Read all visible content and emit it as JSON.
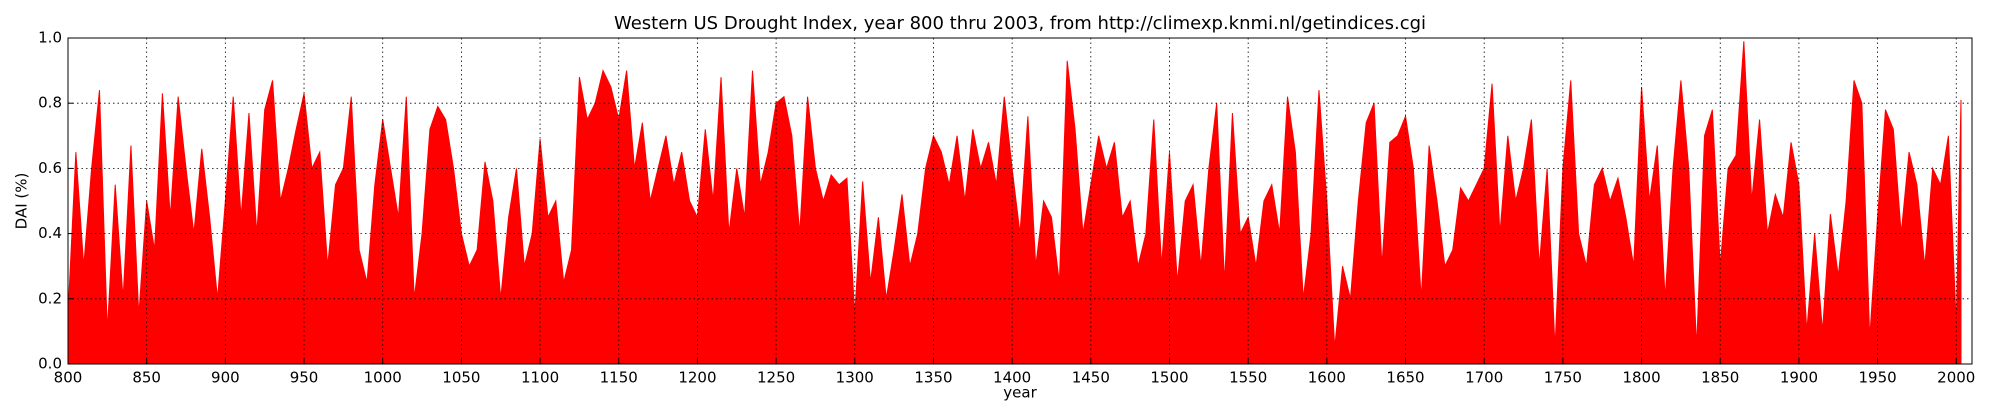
{
  "chart_data": {
    "type": "area",
    "title": "Western US Drought Index, year 800 thru 2003, from http://climexp.knmi.nl/getindices.cgi",
    "x_label": "year",
    "y_label": "DAI (%)",
    "color": "#ff0000",
    "grid": true,
    "xlim": [
      800,
      2010
    ],
    "ylim": [
      0,
      1
    ],
    "xticks": [
      800,
      850,
      900,
      950,
      1000,
      1050,
      1100,
      1150,
      1200,
      1250,
      1300,
      1350,
      1400,
      1450,
      1500,
      1550,
      1600,
      1650,
      1700,
      1750,
      1800,
      1850,
      1900,
      1950,
      2000
    ],
    "yticks": [
      {
        "value": 0,
        "label": "0.0"
      },
      0.2,
      0.4,
      0.6,
      0.8,
      {
        "value": 1,
        "label": "1.0"
      }
    ],
    "x": [
      800,
      805,
      810,
      815,
      820,
      825,
      830,
      835,
      840,
      845,
      850,
      855,
      860,
      865,
      870,
      875,
      880,
      885,
      890,
      895,
      900,
      905,
      910,
      915,
      920,
      925,
      930,
      935,
      940,
      945,
      950,
      955,
      960,
      965,
      970,
      975,
      980,
      985,
      990,
      995,
      1000,
      1005,
      1010,
      1015,
      1020,
      1025,
      1030,
      1035,
      1040,
      1045,
      1050,
      1055,
      1060,
      1065,
      1070,
      1075,
      1080,
      1085,
      1090,
      1095,
      1100,
      1105,
      1110,
      1115,
      1120,
      1125,
      1130,
      1135,
      1140,
      1145,
      1150,
      1155,
      1160,
      1165,
      1170,
      1175,
      1180,
      1185,
      1190,
      1195,
      1200,
      1205,
      1210,
      1215,
      1220,
      1225,
      1230,
      1235,
      1240,
      1245,
      1250,
      1255,
      1260,
      1265,
      1270,
      1275,
      1280,
      1285,
      1290,
      1295,
      1300,
      1305,
      1310,
      1315,
      1320,
      1325,
      1330,
      1335,
      1340,
      1345,
      1350,
      1355,
      1360,
      1365,
      1370,
      1375,
      1380,
      1385,
      1390,
      1395,
      1400,
      1405,
      1410,
      1415,
      1420,
      1425,
      1430,
      1435,
      1440,
      1445,
      1450,
      1455,
      1460,
      1465,
      1470,
      1475,
      1480,
      1485,
      1490,
      1495,
      1500,
      1505,
      1510,
      1515,
      1520,
      1525,
      1530,
      1535,
      1540,
      1545,
      1550,
      1555,
      1560,
      1565,
      1570,
      1575,
      1580,
      1585,
      1590,
      1595,
      1600,
      1605,
      1610,
      1615,
      1620,
      1625,
      1630,
      1635,
      1640,
      1645,
      1650,
      1655,
      1660,
      1665,
      1670,
      1675,
      1680,
      1685,
      1690,
      1695,
      1700,
      1705,
      1710,
      1715,
      1720,
      1725,
      1730,
      1735,
      1740,
      1745,
      1750,
      1755,
      1760,
      1765,
      1770,
      1775,
      1780,
      1785,
      1790,
      1795,
      1800,
      1805,
      1810,
      1815,
      1820,
      1825,
      1830,
      1835,
      1840,
      1845,
      1850,
      1855,
      1860,
      1865,
      1870,
      1875,
      1880,
      1885,
      1890,
      1895,
      1900,
      1905,
      1910,
      1915,
      1920,
      1925,
      1930,
      1935,
      1940,
      1945,
      1950,
      1955,
      1960,
      1965,
      1970,
      1975,
      1980,
      1985,
      1990,
      1995,
      2000,
      2003
    ],
    "values": [
      0.15,
      0.65,
      0.3,
      0.6,
      0.84,
      0.1,
      0.55,
      0.2,
      0.67,
      0.15,
      0.5,
      0.35,
      0.83,
      0.45,
      0.82,
      0.6,
      0.4,
      0.66,
      0.45,
      0.2,
      0.5,
      0.82,
      0.45,
      0.77,
      0.4,
      0.78,
      0.87,
      0.5,
      0.6,
      0.72,
      0.83,
      0.6,
      0.65,
      0.3,
      0.55,
      0.6,
      0.82,
      0.35,
      0.25,
      0.55,
      0.75,
      0.6,
      0.45,
      0.82,
      0.2,
      0.4,
      0.72,
      0.79,
      0.75,
      0.6,
      0.4,
      0.3,
      0.35,
      0.62,
      0.5,
      0.2,
      0.45,
      0.6,
      0.3,
      0.4,
      0.69,
      0.45,
      0.5,
      0.25,
      0.35,
      0.88,
      0.75,
      0.8,
      0.9,
      0.85,
      0.75,
      0.9,
      0.6,
      0.74,
      0.5,
      0.6,
      0.7,
      0.55,
      0.65,
      0.5,
      0.45,
      0.72,
      0.5,
      0.88,
      0.4,
      0.6,
      0.45,
      0.9,
      0.55,
      0.65,
      0.8,
      0.82,
      0.7,
      0.4,
      0.82,
      0.6,
      0.5,
      0.58,
      0.55,
      0.57,
      0.15,
      0.56,
      0.25,
      0.45,
      0.2,
      0.35,
      0.52,
      0.3,
      0.4,
      0.6,
      0.7,
      0.65,
      0.55,
      0.7,
      0.5,
      0.72,
      0.6,
      0.68,
      0.55,
      0.82,
      0.6,
      0.4,
      0.76,
      0.3,
      0.5,
      0.45,
      0.25,
      0.93,
      0.72,
      0.4,
      0.55,
      0.7,
      0.6,
      0.68,
      0.45,
      0.5,
      0.3,
      0.4,
      0.75,
      0.3,
      0.65,
      0.25,
      0.5,
      0.55,
      0.3,
      0.6,
      0.8,
      0.25,
      0.77,
      0.4,
      0.45,
      0.3,
      0.5,
      0.55,
      0.4,
      0.82,
      0.65,
      0.2,
      0.4,
      0.84,
      0.5,
      0.05,
      0.3,
      0.2,
      0.5,
      0.74,
      0.8,
      0.3,
      0.68,
      0.7,
      0.76,
      0.6,
      0.2,
      0.67,
      0.5,
      0.3,
      0.35,
      0.54,
      0.5,
      0.55,
      0.6,
      0.86,
      0.4,
      0.7,
      0.5,
      0.6,
      0.75,
      0.3,
      0.6,
      0.05,
      0.6,
      0.87,
      0.4,
      0.3,
      0.55,
      0.6,
      0.5,
      0.57,
      0.45,
      0.3,
      0.85,
      0.5,
      0.67,
      0.2,
      0.6,
      0.87,
      0.6,
      0.05,
      0.7,
      0.78,
      0.3,
      0.6,
      0.64,
      0.99,
      0.5,
      0.75,
      0.4,
      0.52,
      0.45,
      0.68,
      0.55,
      0.1,
      0.4,
      0.1,
      0.46,
      0.27,
      0.5,
      0.87,
      0.8,
      0.08,
      0.45,
      0.78,
      0.72,
      0.4,
      0.65,
      0.55,
      0.3,
      0.6,
      0.55,
      0.7,
      0.12,
      0.81
    ]
  }
}
